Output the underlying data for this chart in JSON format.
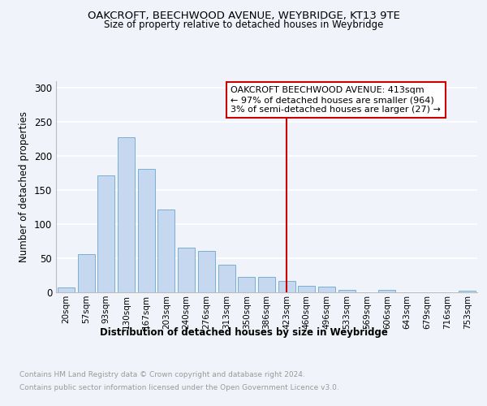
{
  "title1": "OAKCROFT, BEECHWOOD AVENUE, WEYBRIDGE, KT13 9TE",
  "title2": "Size of property relative to detached houses in Weybridge",
  "xlabel": "Distribution of detached houses by size in Weybridge",
  "ylabel": "Number of detached properties",
  "categories": [
    "20sqm",
    "57sqm",
    "93sqm",
    "130sqm",
    "167sqm",
    "203sqm",
    "240sqm",
    "276sqm",
    "313sqm",
    "350sqm",
    "386sqm",
    "423sqm",
    "460sqm",
    "496sqm",
    "533sqm",
    "569sqm",
    "606sqm",
    "643sqm",
    "679sqm",
    "716sqm",
    "753sqm"
  ],
  "values": [
    7,
    56,
    172,
    228,
    181,
    122,
    65,
    61,
    40,
    23,
    23,
    17,
    9,
    8,
    3,
    0,
    3,
    0,
    0,
    0,
    2
  ],
  "bar_color": "#c5d8f0",
  "bar_edge_color": "#7aafd4",
  "vline_x_index": 11,
  "vline_color": "#cc0000",
  "annotation_title": "OAKCROFT BEECHWOOD AVENUE: 413sqm",
  "annotation_line1": "← 97% of detached houses are smaller (964)",
  "annotation_line2": "3% of semi-detached houses are larger (27) →",
  "annotation_box_color": "#cc0000",
  "ylim": [
    0,
    310
  ],
  "yticks": [
    0,
    50,
    100,
    150,
    200,
    250,
    300
  ],
  "footer1": "Contains HM Land Registry data © Crown copyright and database right 2024.",
  "footer2": "Contains public sector information licensed under the Open Government Licence v3.0.",
  "bg_color": "#f0f4fa",
  "grid_color": "#ffffff"
}
